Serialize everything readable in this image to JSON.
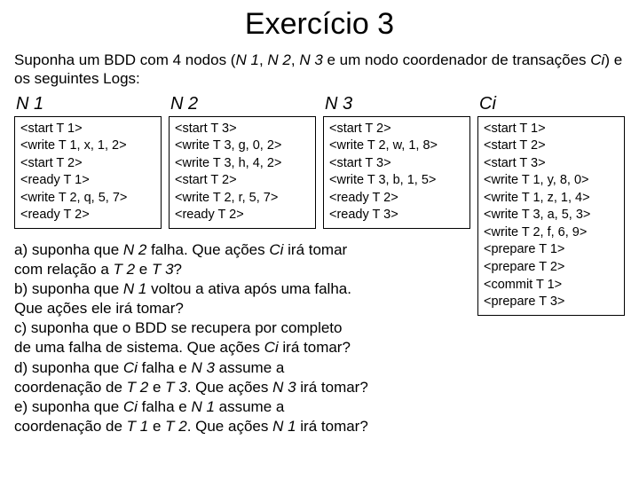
{
  "title": "Exercício 3",
  "intro_parts": {
    "p1": "Suponha um BDD com 4 nodos (",
    "n1": "N 1",
    "c1": ", ",
    "n2": "N 2",
    "c2": ", ",
    "n3": "N 3",
    "p2": " e um nodo coordenador de transações ",
    "ci": "Ci",
    "p3": ") e os seguintes Logs:"
  },
  "columns": {
    "n1": {
      "label": "N 1",
      "lines": [
        "<start T 1>",
        "<write T 1, x, 1, 2>",
        "<start T 2>",
        "<ready T 1>",
        "<write T 2, q, 5, 7>",
        "<ready T 2>"
      ]
    },
    "n2": {
      "label": "N 2",
      "lines": [
        "<start T 3>",
        "<write T 3, g, 0, 2>",
        "<write T 3, h, 4, 2>",
        "<start T 2>",
        "<write T 2, r, 5, 7>",
        "<ready T 2>"
      ]
    },
    "n3": {
      "label": "N 3",
      "lines": [
        "<start T 2>",
        "<write T 2, w, 1, 8>",
        "<start T 3>",
        "<write T 3, b, 1, 5>",
        "<ready T 2>",
        "<ready T 3>"
      ]
    },
    "ci": {
      "label": "Ci",
      "lines": [
        "<start T 1>",
        "<start T 2>",
        "<start T 3>",
        "<write T 1, y, 8, 0>",
        "<write T 1, z, 1, 4>",
        "<write T 3, a, 5, 3>",
        "<write T 2, f, 6, 9>",
        "<prepare T 1>",
        "<prepare T 2>",
        "<commit T 1>",
        "<prepare T 3>"
      ]
    }
  },
  "q": {
    "a1": "a) suponha que ",
    "a_i1": "N 2",
    "a2": " falha. Que ações ",
    "a_i2": "Ci",
    "a3": " irá tomar",
    "a4": "com relação a ",
    "a_i3": "T 2",
    "a5": " e ",
    "a_i4": "T 3",
    "a6": "?",
    "b1": "b) suponha que ",
    "b_i1": "N 1",
    "b2": " voltou a ativa após uma falha.",
    "b3": "Que ações ele irá tomar?",
    "c1": "c) suponha que o BDD se recupera por completo",
    "c2": "de uma falha de sistema. Que ações ",
    "c_i1": "Ci",
    "c3": " irá tomar?",
    "d1": "d) suponha que ",
    "d_i1": "Ci",
    "d2": " falha e ",
    "d_i2": "N 3",
    "d3": " assume a",
    "d4": "coordenação de ",
    "d_i3": "T 2",
    "d5": " e ",
    "d_i4": "T 3",
    "d6": ". Que ações ",
    "d_i5": "N 3",
    "d7": " irá tomar?",
    "e1": "e) suponha que ",
    "e_i1": "Ci",
    "e2": " falha e ",
    "e_i2": "N 1",
    "e3": " assume a",
    "e4": "coordenação de ",
    "e_i3": "T 1",
    "e5": " e ",
    "e_i4": "T 2",
    "e6": ". Que ações ",
    "e_i5": "N 1",
    "e7": " irá tomar?"
  },
  "colors": {
    "text": "#000000",
    "bg": "#ffffff",
    "border": "#000000"
  }
}
